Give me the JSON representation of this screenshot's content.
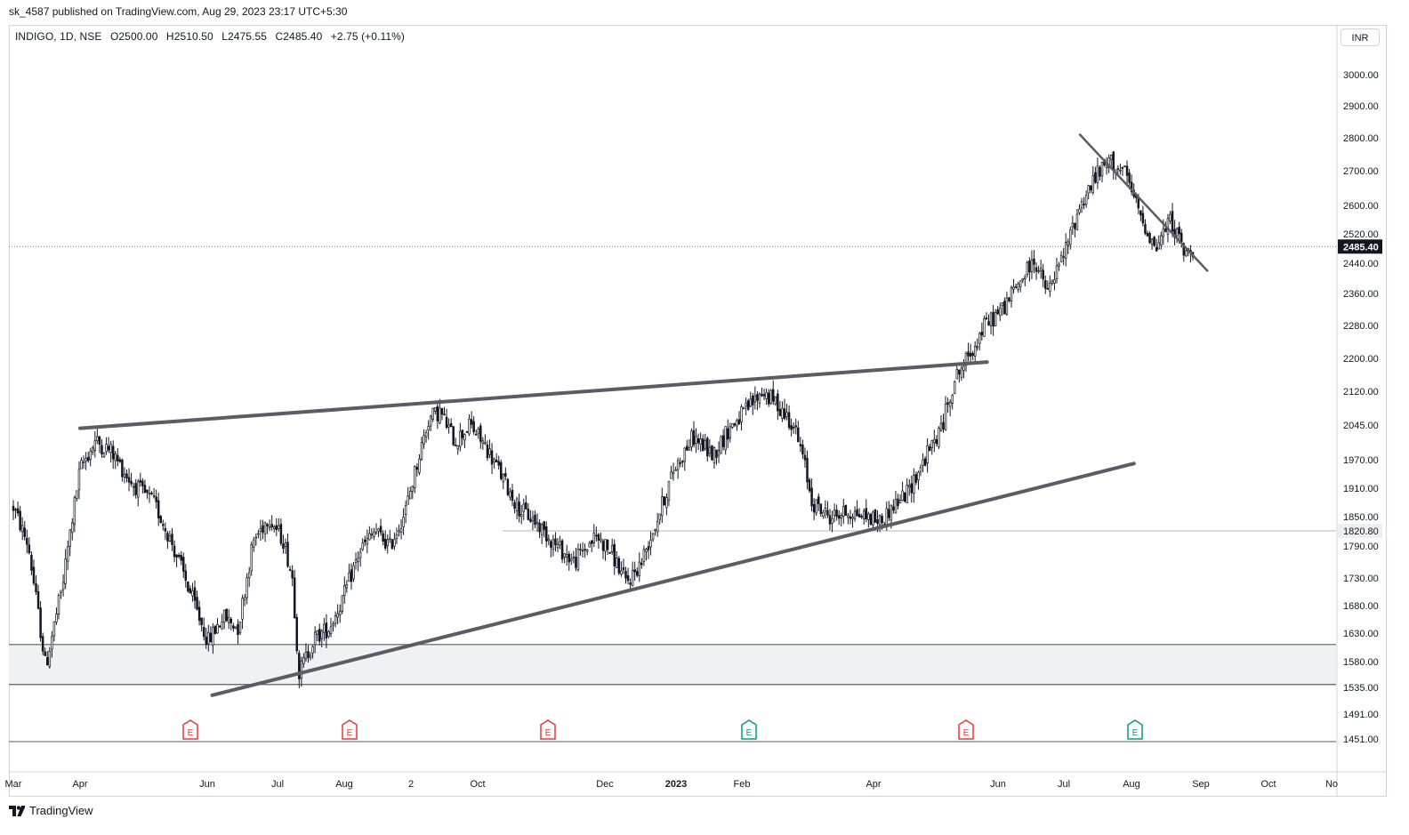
{
  "header": {
    "published_text": "sk_4587 published on TradingView.com, Aug 29, 2023 23:17 UTC+5:30"
  },
  "legend": {
    "symbol": "INDIGO, 1D, NSE",
    "open": "O2500.00",
    "high": "H2510.50",
    "low": "L2475.55",
    "close": "C2485.40",
    "change": "+2.75 (+0.11%)"
  },
  "currency_button": "INR",
  "footer": {
    "brand": "TradingView"
  },
  "colors": {
    "candle": "#131722",
    "trendline": "#5d5b65",
    "zone_fill": "#f0f1f3",
    "earnings_negative": "#e53935",
    "earnings_positive": "#089981",
    "last_price_label": "#131722"
  },
  "chart_data": {
    "type": "candlestick",
    "symbol": "INDIGO",
    "interval": "1D",
    "exchange": "NSE",
    "y_axis_ticks": [
      "3000.00",
      "2900.00",
      "2800.00",
      "2700.00",
      "2600.00",
      "2520.00",
      "2440.00",
      "2360.00",
      "2280.00",
      "2200.00",
      "2120.00",
      "2045.00",
      "1970.00",
      "1910.00",
      "1850.00",
      "1790.00",
      "1730.00",
      "1680.00",
      "1630.00",
      "1580.00",
      "1535.00",
      "1491.00",
      "1451.00"
    ],
    "x_axis_ticks": [
      "Mar",
      "Apr",
      "Jun",
      "Jul",
      "Aug",
      "2",
      "Oct",
      "Dec",
      "2023",
      "Feb",
      "Apr",
      "Jun",
      "Jul",
      "Aug",
      "Sep",
      "Oct",
      "No"
    ],
    "last_price": 2485.4,
    "last_price_label": "2485.40",
    "marked_level": 1820.8,
    "marked_level_label": "1820.80",
    "support_zone": [
      1540,
      1610
    ],
    "earnings_markers": [
      {
        "x": "2022-06",
        "label": "E",
        "surprise": "negative"
      },
      {
        "x": "2022-08",
        "label": "E",
        "surprise": "negative"
      },
      {
        "x": "2022-11",
        "label": "E",
        "surprise": "negative"
      },
      {
        "x": "2023-02",
        "label": "E",
        "surprise": "positive"
      },
      {
        "x": "2023-05",
        "label": "E",
        "surprise": "negative"
      },
      {
        "x": "2023-08",
        "label": "E",
        "surprise": "positive"
      }
    ],
    "trendlines": [
      {
        "name": "upper",
        "from": {
          "date": "2022-04-01",
          "price": 2038
        },
        "to": {
          "date": "2023-05-25",
          "price": 2191
        }
      },
      {
        "name": "lower",
        "from": {
          "date": "2022-06-01",
          "price": 1522
        },
        "to": {
          "date": "2023-08-01",
          "price": 1962
        }
      },
      {
        "name": "descending",
        "from": {
          "date": "2023-07-07",
          "price": 2810
        },
        "to": {
          "date": "2023-09-04",
          "price": 2420
        }
      }
    ],
    "path_points": [
      [
        "2022-03-01",
        1870
      ],
      [
        "2022-03-08",
        1790
      ],
      [
        "2022-03-16",
        1570
      ],
      [
        "2022-03-24",
        1720
      ],
      [
        "2022-04-01",
        1950
      ],
      [
        "2022-04-08",
        2010
      ],
      [
        "2022-04-15",
        1990
      ],
      [
        "2022-04-25",
        1920
      ],
      [
        "2022-05-05",
        1880
      ],
      [
        "2022-05-13",
        1800
      ],
      [
        "2022-05-23",
        1690
      ],
      [
        "2022-05-30",
        1615
      ],
      [
        "2022-06-06",
        1660
      ],
      [
        "2022-06-13",
        1640
      ],
      [
        "2022-06-20",
        1800
      ],
      [
        "2022-06-27",
        1850
      ],
      [
        "2022-07-04",
        1800
      ],
      [
        "2022-07-08",
        1730
      ],
      [
        "2022-07-11",
        1560
      ],
      [
        "2022-07-18",
        1620
      ],
      [
        "2022-07-25",
        1640
      ],
      [
        "2022-08-01",
        1700
      ],
      [
        "2022-08-08",
        1780
      ],
      [
        "2022-08-15",
        1820
      ],
      [
        "2022-08-22",
        1790
      ],
      [
        "2022-08-29",
        1860
      ],
      [
        "2022-09-05",
        1990
      ],
      [
        "2022-09-09",
        2060
      ],
      [
        "2022-09-14",
        2075
      ],
      [
        "2022-09-21",
        2010
      ],
      [
        "2022-09-28",
        2045
      ],
      [
        "2022-10-05",
        2000
      ],
      [
        "2022-10-12",
        1940
      ],
      [
        "2022-10-20",
        1870
      ],
      [
        "2022-10-28",
        1840
      ],
      [
        "2022-11-07",
        1790
      ],
      [
        "2022-11-15",
        1760
      ],
      [
        "2022-11-25",
        1810
      ],
      [
        "2022-12-02",
        1780
      ],
      [
        "2022-12-09",
        1720
      ],
      [
        "2022-12-16",
        1760
      ],
      [
        "2022-12-23",
        1840
      ],
      [
        "2022-12-31",
        1950
      ],
      [
        "2023-01-09",
        2020
      ],
      [
        "2023-01-18",
        1980
      ],
      [
        "2023-01-26",
        2040
      ],
      [
        "2023-02-03",
        2080
      ],
      [
        "2023-02-10",
        2120
      ],
      [
        "2023-02-17",
        2090
      ],
      [
        "2023-02-24",
        2050
      ],
      [
        "2023-03-01",
        1970
      ],
      [
        "2023-03-05",
        1880
      ],
      [
        "2023-03-13",
        1850
      ],
      [
        "2023-03-22",
        1860
      ],
      [
        "2023-03-31",
        1850
      ],
      [
        "2023-04-06",
        1840
      ],
      [
        "2023-04-11",
        1870
      ],
      [
        "2023-04-18",
        1900
      ],
      [
        "2023-04-26",
        1970
      ],
      [
        "2023-05-04",
        2040
      ],
      [
        "2023-05-10",
        2150
      ],
      [
        "2023-05-16",
        2200
      ],
      [
        "2023-05-24",
        2280
      ],
      [
        "2023-06-01",
        2320
      ],
      [
        "2023-06-09",
        2390
      ],
      [
        "2023-06-16",
        2450
      ],
      [
        "2023-06-22",
        2360
      ],
      [
        "2023-06-30",
        2470
      ],
      [
        "2023-07-07",
        2600
      ],
      [
        "2023-07-14",
        2680
      ],
      [
        "2023-07-21",
        2730
      ],
      [
        "2023-07-28",
        2690
      ],
      [
        "2023-08-04",
        2570
      ],
      [
        "2023-08-11",
        2480
      ],
      [
        "2023-08-18",
        2560
      ],
      [
        "2023-08-25",
        2460
      ],
      [
        "2023-08-29",
        2485
      ]
    ]
  }
}
